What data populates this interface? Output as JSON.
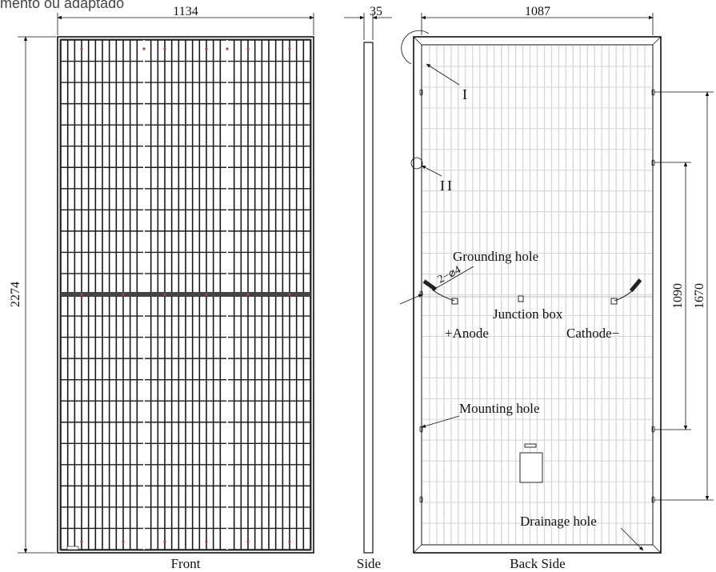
{
  "top_caption": "mento ou adaptado",
  "dimensions": {
    "front_width": "1134",
    "height": "2274",
    "side_thickness": "35",
    "back_width": "1087",
    "hole_spacing_inner": "1090",
    "hole_spacing_outer": "1670",
    "grounding_spec": "2−⌀4"
  },
  "labels": {
    "detail_1": "I",
    "detail_2": "II",
    "grounding_hole": "Grounding hole",
    "junction_box": "Junction box",
    "anode": "+Anode",
    "cathode": "Cathode−",
    "mounting_hole": "Mounting hole",
    "drainage_hole": "Drainage hole"
  },
  "views": {
    "front": "Front",
    "side": "Side",
    "back": "Back Side"
  },
  "colors": {
    "line": "#111111",
    "cell_grid": "#1a1a1a",
    "back_grid": "#d6d6d6",
    "marker_red": "#c0392b"
  }
}
